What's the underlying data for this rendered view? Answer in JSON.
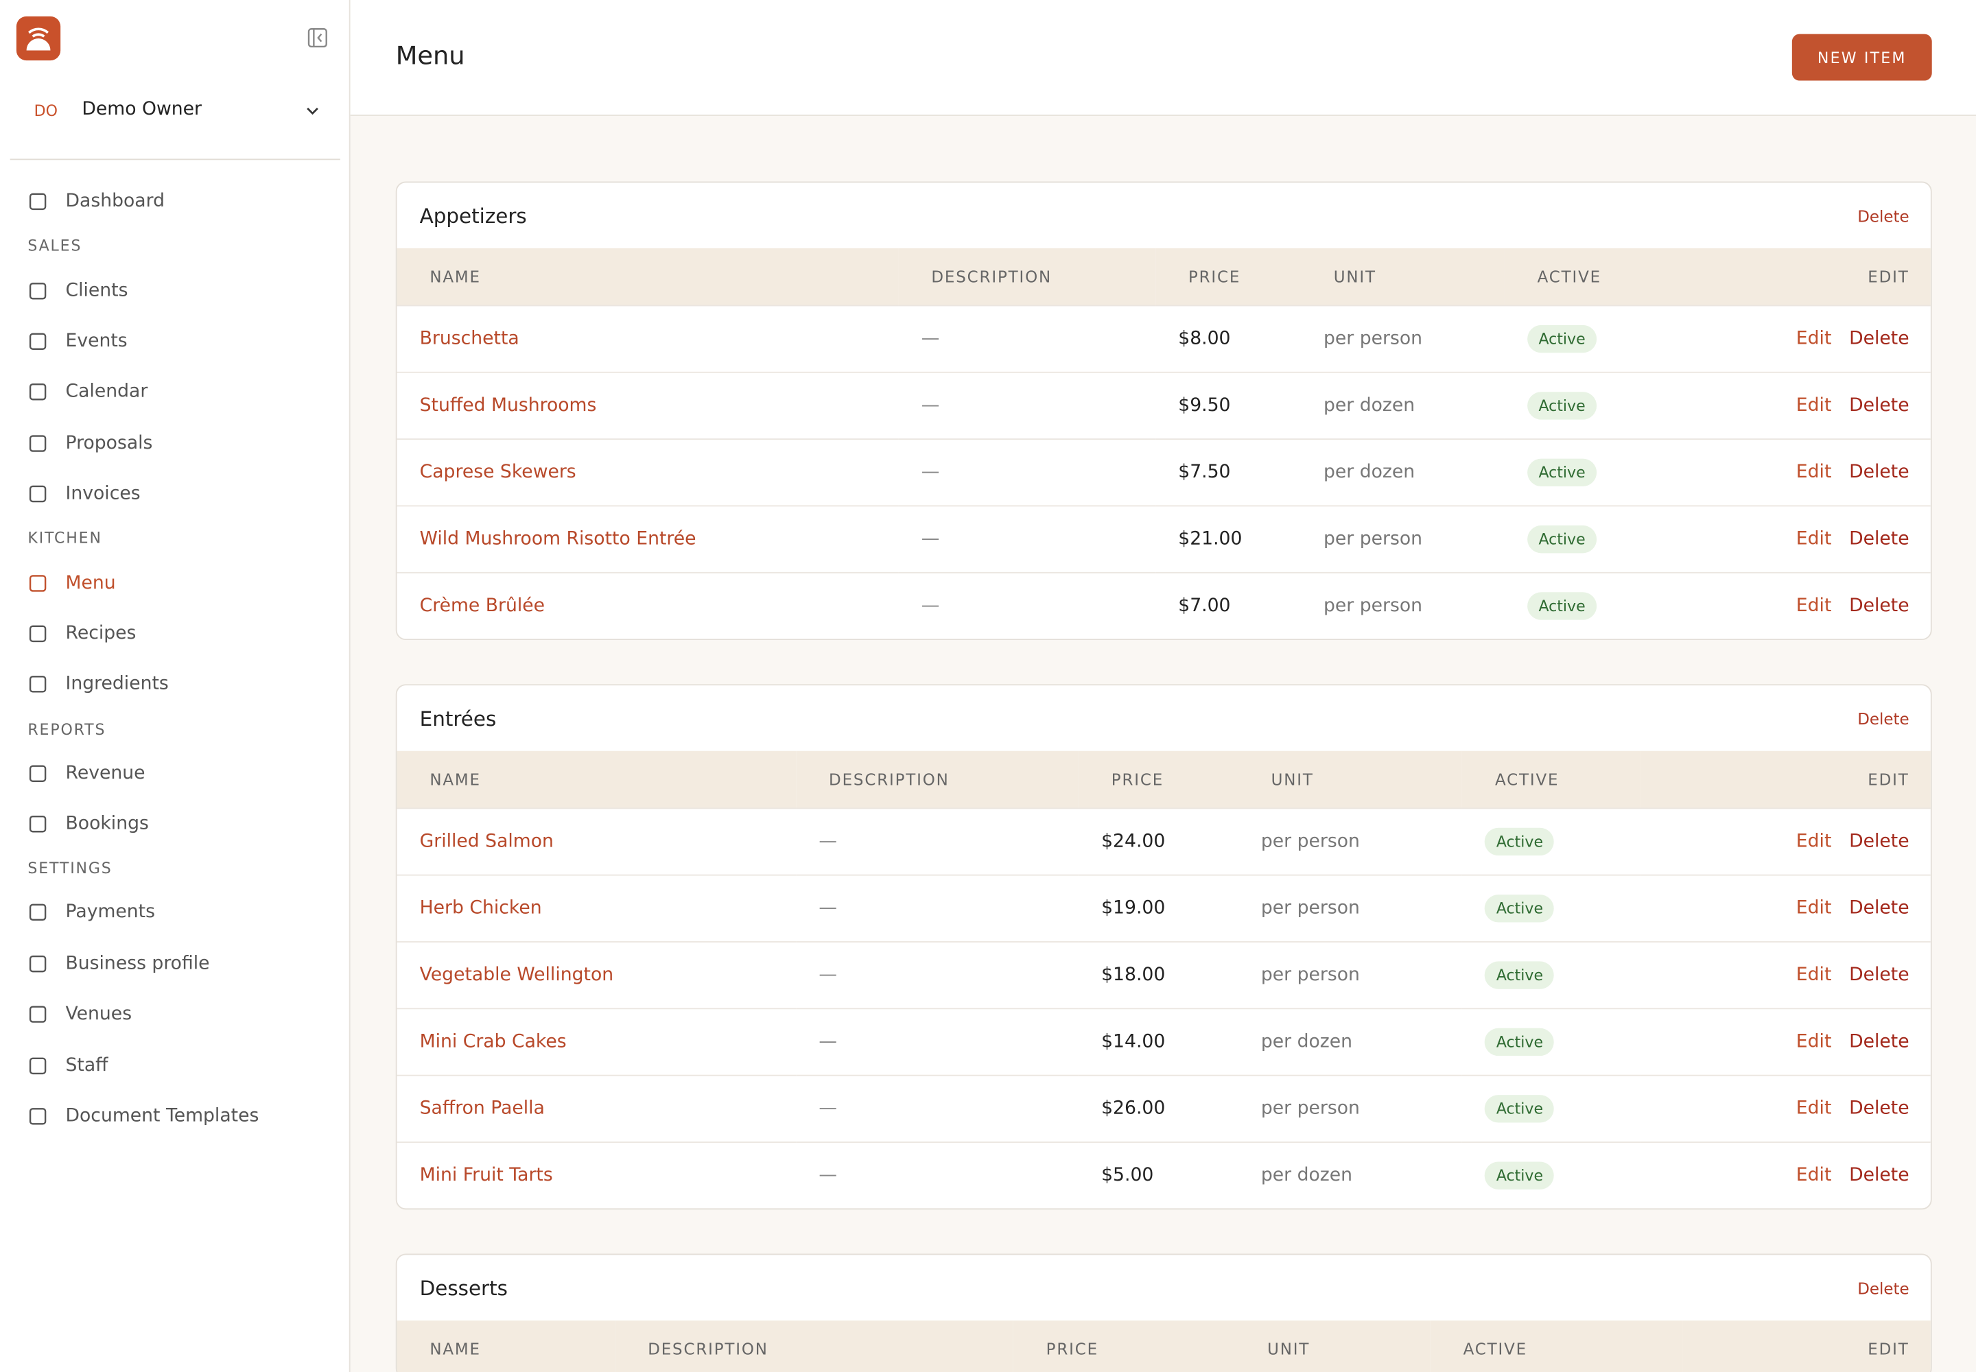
{
  "sidebar": {
    "user_initials": "DO",
    "user_name": "Demo Owner",
    "top_item": "Dashboard",
    "groups": [
      {
        "title": "SALES",
        "items": [
          "Clients",
          "Events",
          "Calendar",
          "Proposals",
          "Invoices"
        ]
      },
      {
        "title": "KITCHEN",
        "items": [
          "Menu",
          "Recipes",
          "Ingredients"
        ]
      },
      {
        "title": "REPORTS",
        "items": [
          "Revenue",
          "Bookings"
        ]
      },
      {
        "title": "SETTINGS",
        "items": [
          "Payments",
          "Business profile",
          "Venues",
          "Staff",
          "Document Templates"
        ]
      }
    ]
  },
  "header": {
    "title": "Menu",
    "button": "NEW ITEM"
  },
  "sections": [
    {
      "title": "Appetizers",
      "delete": "Delete",
      "columns": [
        "NAME",
        "DESCRIPTION",
        "PRICE",
        "UNIT",
        "ACTIVE",
        "EDIT"
      ],
      "rows": [
        {
          "name": "Bruschetta",
          "description": "—",
          "price": "$8.00",
          "unit": "per person",
          "active": "Active",
          "edit": "Edit",
          "delete": "Delete"
        },
        {
          "name": "Stuffed Mushrooms",
          "description": "—",
          "price": "$9.50",
          "unit": "per dozen",
          "active": "Active",
          "edit": "Edit",
          "delete": "Delete"
        },
        {
          "name": "Caprese Skewers",
          "description": "—",
          "price": "$7.50",
          "unit": "per dozen",
          "active": "Active",
          "edit": "Edit",
          "delete": "Delete"
        },
        {
          "name": "Wild Mushroom Risotto Entrée",
          "description": "—",
          "price": "$21.00",
          "unit": "per person",
          "active": "Active",
          "edit": "Edit",
          "delete": "Delete"
        },
        {
          "name": "Crème Brûlée",
          "description": "—",
          "price": "$7.00",
          "unit": "per person",
          "active": "Active",
          "edit": "Edit",
          "delete": "Delete"
        }
      ]
    },
    {
      "title": "Entrées",
      "delete": "Delete",
      "columns": [
        "NAME",
        "DESCRIPTION",
        "PRICE",
        "UNIT",
        "ACTIVE",
        "EDIT"
      ],
      "rows": [
        {
          "name": "Grilled Salmon",
          "description": "—",
          "price": "$24.00",
          "unit": "per person",
          "active": "Active",
          "edit": "Edit",
          "delete": "Delete"
        },
        {
          "name": "Herb Chicken",
          "description": "—",
          "price": "$19.00",
          "unit": "per person",
          "active": "Active",
          "edit": "Edit",
          "delete": "Delete"
        },
        {
          "name": "Vegetable Wellington",
          "description": "—",
          "price": "$18.00",
          "unit": "per person",
          "active": "Active",
          "edit": "Edit",
          "delete": "Delete"
        },
        {
          "name": "Mini Crab Cakes",
          "description": "—",
          "price": "$14.00",
          "unit": "per dozen",
          "active": "Active",
          "edit": "Edit",
          "delete": "Delete"
        },
        {
          "name": "Saffron Paella",
          "description": "—",
          "price": "$26.00",
          "unit": "per person",
          "active": "Active",
          "edit": "Edit",
          "delete": "Delete"
        },
        {
          "name": "Mini Fruit Tarts",
          "description": "—",
          "price": "$5.00",
          "unit": "per dozen",
          "active": "Active",
          "edit": "Edit",
          "delete": "Delete"
        }
      ]
    },
    {
      "title": "Desserts",
      "delete": "Delete",
      "columns": [
        "NAME",
        "DESCRIPTION",
        "PRICE",
        "UNIT",
        "ACTIVE",
        "EDIT"
      ],
      "rows": []
    }
  ]
}
